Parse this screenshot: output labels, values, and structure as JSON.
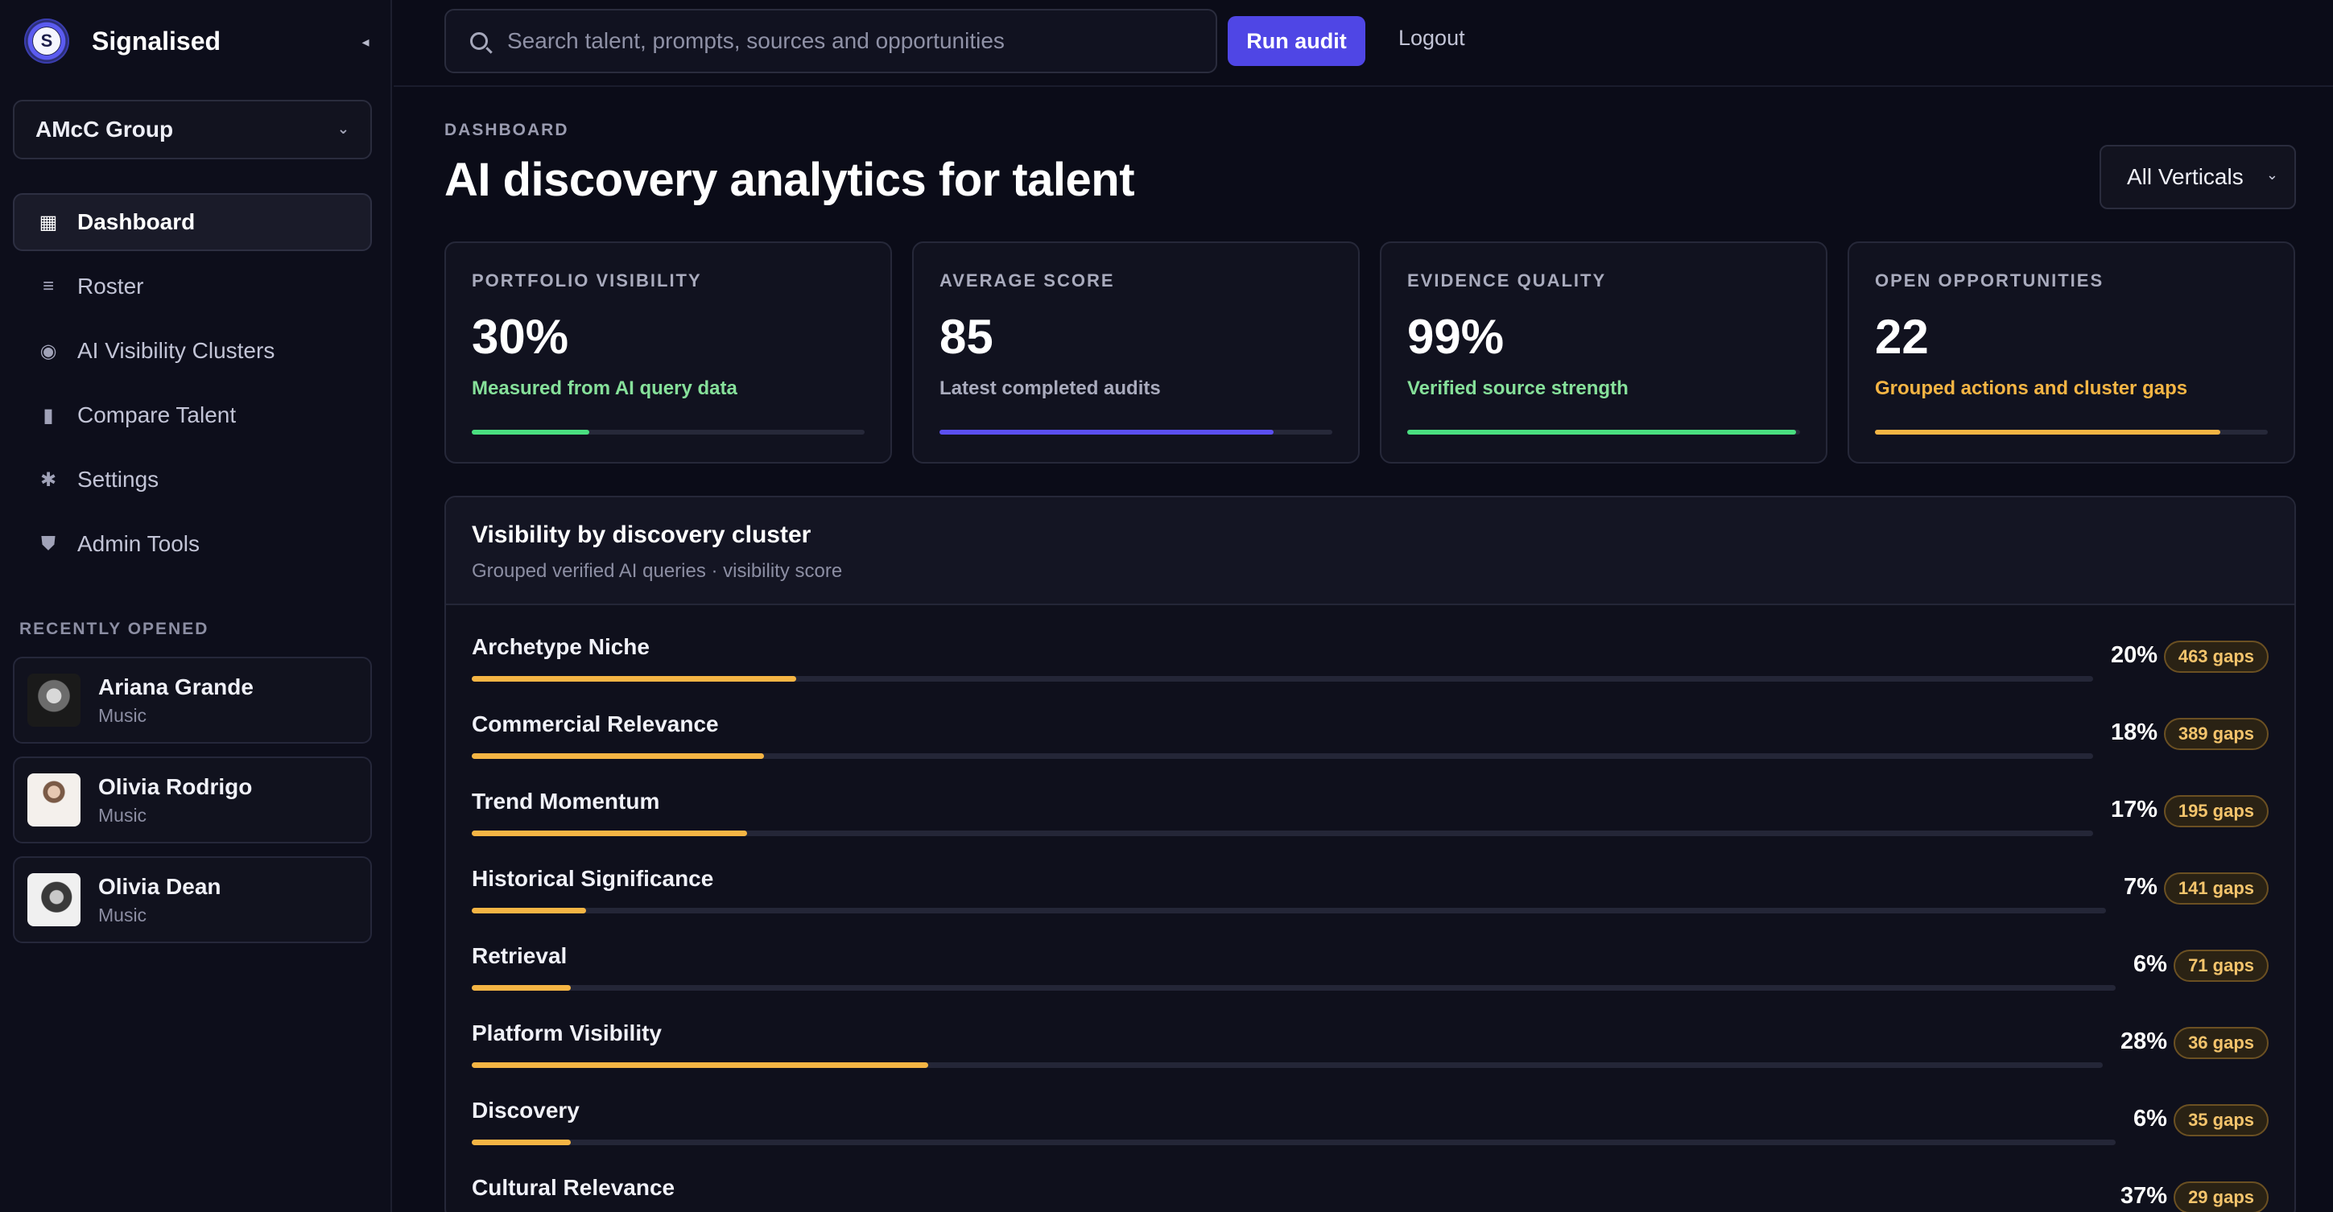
{
  "brand": {
    "logo_letter": "S",
    "name": "Signalised",
    "collapse_glyph": "◂"
  },
  "org_select": {
    "value": "AMcC Group",
    "chevron": "⌄"
  },
  "nav": [
    {
      "label": "Dashboard",
      "icon": "dashboard-icon",
      "glyph": "▦",
      "active": true
    },
    {
      "label": "Roster",
      "icon": "list-icon",
      "glyph": "≡",
      "active": false
    },
    {
      "label": "AI Visibility Clusters",
      "icon": "eye-icon",
      "glyph": "◉",
      "active": false
    },
    {
      "label": "Compare Talent",
      "icon": "bar-chart-icon",
      "glyph": "▮",
      "active": false
    },
    {
      "label": "Settings",
      "icon": "gear-icon",
      "glyph": "✱",
      "active": false
    },
    {
      "label": "Admin Tools",
      "icon": "shield-icon",
      "glyph": "⛊",
      "active": false
    }
  ],
  "recent": {
    "title": "RECENTLY OPENED",
    "items": [
      {
        "name": "Ariana Grande",
        "category": "Music"
      },
      {
        "name": "Olivia Rodrigo",
        "category": "Music"
      },
      {
        "name": "Olivia Dean",
        "category": "Music"
      }
    ]
  },
  "topbar": {
    "search_placeholder": "Search talent, prompts, sources and opportunities",
    "run_audit": "Run audit",
    "logout": "Logout"
  },
  "page": {
    "eyebrow": "DASHBOARD",
    "title": "AI discovery analytics for talent",
    "vertical_select": "All Verticals",
    "vertical_chevron": "⌄"
  },
  "kpis": [
    {
      "label": "PORTFOLIO VISIBILITY",
      "value": "30%",
      "note": "Measured from AI query data",
      "note_color": "#86e09a",
      "bar_color": "#4ade80",
      "progress": 0.3
    },
    {
      "label": "AVERAGE SCORE",
      "value": "85",
      "note": "Latest completed audits",
      "note_color": "#a9abbd",
      "bar_color": "#5b4ff0",
      "progress": 0.85
    },
    {
      "label": "EVIDENCE QUALITY",
      "value": "99%",
      "note": "Verified source strength",
      "note_color": "#86e09a",
      "bar_color": "#4ade80",
      "progress": 0.99
    },
    {
      "label": "OPEN OPPORTUNITIES",
      "value": "22",
      "note": "Grouped actions and cluster gaps",
      "note_color": "#f5b544",
      "bar_color": "#f5b544",
      "progress": 0.88
    }
  ],
  "clusters": {
    "title": "Visibility by discovery cluster",
    "subtitle": "Grouped verified AI queries · visibility score",
    "rows": [
      {
        "name": "Archetype Niche",
        "pct": "20%",
        "value": 20,
        "gaps": "463 gaps"
      },
      {
        "name": "Commercial Relevance",
        "pct": "18%",
        "value": 18,
        "gaps": "389 gaps"
      },
      {
        "name": "Trend Momentum",
        "pct": "17%",
        "value": 17,
        "gaps": "195 gaps"
      },
      {
        "name": "Historical Significance",
        "pct": "7%",
        "value": 7,
        "gaps": "141 gaps"
      },
      {
        "name": "Retrieval",
        "pct": "6%",
        "value": 6,
        "gaps": "71 gaps"
      },
      {
        "name": "Platform Visibility",
        "pct": "28%",
        "value": 28,
        "gaps": "36 gaps"
      },
      {
        "name": "Discovery",
        "pct": "6%",
        "value": 6,
        "gaps": "35 gaps"
      },
      {
        "name": "Cultural Relevance",
        "pct": "37%",
        "value": 37,
        "gaps": "29 gaps"
      }
    ]
  }
}
